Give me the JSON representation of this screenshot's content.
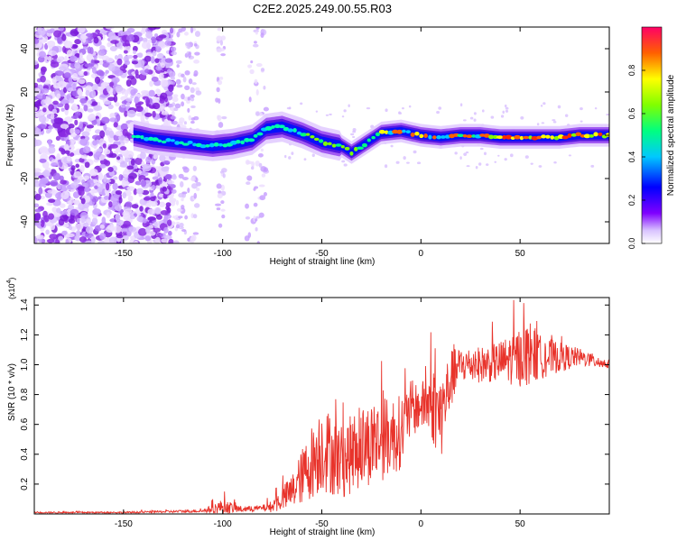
{
  "title": "C2E2.2025.249.00.55.R03",
  "chart_data": [
    {
      "type": "heatmap",
      "name": "spectrogram",
      "xlabel": "Height of straight line (km)",
      "ylabel": "Frequency (Hz)",
      "xlim": [
        -195,
        95
      ],
      "ylim": [
        -50,
        50
      ],
      "xticks": [
        -150,
        -100,
        -50,
        0,
        50
      ],
      "yticks": [
        -40,
        -20,
        0,
        20,
        40
      ],
      "xtick_labels": [
        "-150",
        "-100",
        "-50",
        "0",
        "50"
      ],
      "ytick_labels": [
        "-40",
        "-20",
        "0",
        "20",
        "40"
      ],
      "ridge": {
        "x": [
          -145,
          -135,
          -125,
          -115,
          -105,
          -95,
          -85,
          -78,
          -70,
          -60,
          -50,
          -40,
          -35,
          -30,
          -20,
          -10,
          0,
          10,
          20,
          30,
          40,
          50,
          60,
          70,
          80,
          95
        ],
        "y": [
          0,
          -2,
          -3,
          -4,
          -5,
          -4,
          -2,
          3,
          4,
          1,
          -3,
          -5,
          -8,
          -5,
          1,
          2,
          0,
          -1,
          0,
          0,
          -1,
          -1,
          -1,
          -1,
          0,
          0
        ]
      },
      "colorbar": {
        "label": "Normalized spectral amplitude",
        "range": [
          0,
          1
        ],
        "ticks": [
          0.0,
          0.2,
          0.4,
          0.6,
          0.8
        ],
        "tick_labels": [
          "0.0",
          "0.2",
          "0.4",
          "0.6",
          "0.8"
        ]
      }
    },
    {
      "type": "line",
      "name": "snr",
      "xlabel": "Height of straight line (km)",
      "ylabel": "SNR (10 * v/v)",
      "multiplier_label": "(x10",
      "multiplier_exp": "4",
      "multiplier_close": ")",
      "xlim": [
        -195,
        95
      ],
      "ylim": [
        0,
        1.45
      ],
      "xticks": [
        -150,
        -100,
        -50,
        0,
        50
      ],
      "yticks": [
        0.2,
        0.4,
        0.6,
        0.8,
        1.0,
        1.2,
        1.4
      ],
      "xtick_labels": [
        "-150",
        "-100",
        "-50",
        "0",
        "50"
      ],
      "ytick_labels": [
        "0.2",
        "0.4",
        "0.6",
        "0.8",
        "1.0",
        "1.2",
        "1.4"
      ],
      "color": "#e8332b",
      "envelope": {
        "x": [
          -195,
          -150,
          -110,
          -100,
          -90,
          -80,
          -75,
          -65,
          -55,
          -50,
          -40,
          -30,
          -20,
          -10,
          -5,
          0,
          5,
          10,
          15,
          20,
          30,
          40,
          50,
          55,
          60,
          70,
          80,
          95
        ],
        "base": [
          0.01,
          0.01,
          0.02,
          0.05,
          0.03,
          0.04,
          0.05,
          0.15,
          0.35,
          0.45,
          0.35,
          0.45,
          0.5,
          0.55,
          0.7,
          0.72,
          0.75,
          0.65,
          0.9,
          1.0,
          1.0,
          1.02,
          1.05,
          1.08,
          1.05,
          1.05,
          1.05,
          1.0
        ],
        "amp": [
          0.005,
          0.005,
          0.01,
          0.05,
          0.02,
          0.02,
          0.04,
          0.12,
          0.25,
          0.3,
          0.25,
          0.28,
          0.28,
          0.25,
          0.2,
          0.15,
          0.25,
          0.3,
          0.2,
          0.12,
          0.12,
          0.14,
          0.2,
          0.22,
          0.15,
          0.1,
          0.06,
          0.03
        ]
      }
    }
  ]
}
